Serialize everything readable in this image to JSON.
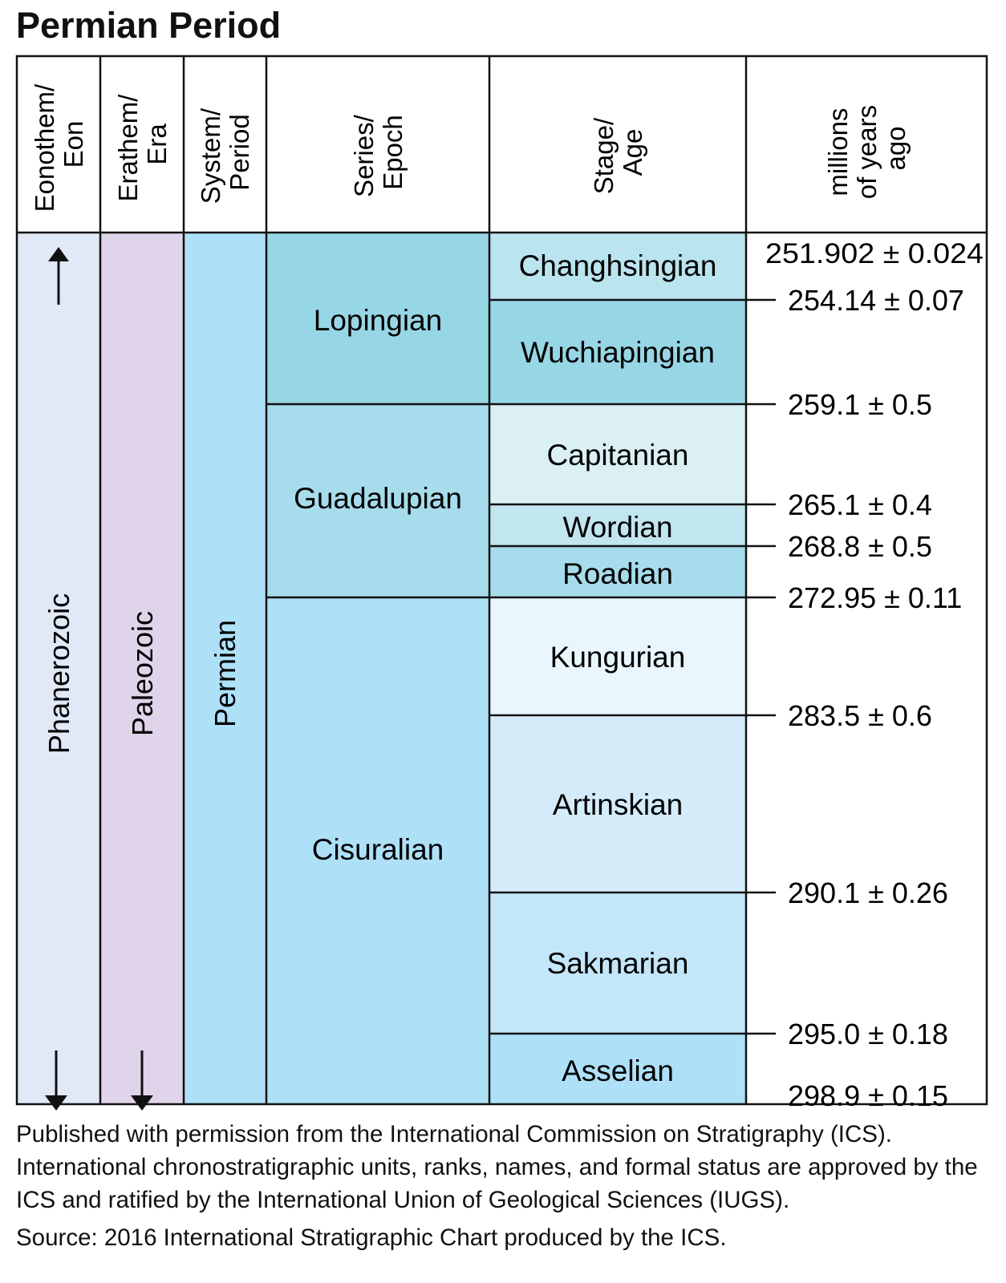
{
  "title": "Permian Period",
  "headers": {
    "eon": [
      "Eonothem/",
      "Eon"
    ],
    "era": [
      "Erathem/",
      "Era"
    ],
    "period": [
      "System/",
      "Period"
    ],
    "epoch": [
      "Series/",
      "Epoch"
    ],
    "age": [
      "Stage/",
      "Age"
    ],
    "mya": [
      "millions",
      "of years",
      "ago"
    ]
  },
  "eon": "Phanerozoic",
  "era": "Paleozoic",
  "period": "Permian",
  "epochs": [
    "Lopingian",
    "Guadalupian",
    "Cisuralian"
  ],
  "stages": [
    "Changhsingian",
    "Wuchiapingian",
    "Capitanian",
    "Wordian",
    "Roadian",
    "Kungurian",
    "Artinskian",
    "Sakmarian",
    "Asselian"
  ],
  "ages": [
    "251.902 ± 0.024",
    "254.14 ± 0.07",
    "259.1 ± 0.5",
    "265.1 ± 0.4",
    "268.8 ± 0.5",
    "272.95 ± 0.11",
    "283.5 ± 0.6",
    "290.1 ± 0.26",
    "295.0 ± 0.18",
    "298.9 ± 0.15"
  ],
  "colors": {
    "eon": "#e1e8f6",
    "era": "#e0d4ea",
    "period": "#aee0f7",
    "lopingian": "#97d6e5",
    "guadalupian": "#a6dceb",
    "cisuralian": "#aee0f7",
    "changhsingian": "#bae4ee",
    "wuchiapingian": "#97d6e5",
    "capitanian": "#dbf0f4",
    "wordian": "#c2e6ef",
    "roadian": "#a6dceb",
    "kungurian": "#e9f6fd",
    "artinskian": "#d4ecfa",
    "sakmarian": "#c4e6f9",
    "asselian": "#aee0f7"
  },
  "footer": {
    "permission": "Published with permission from the International Commission on Stratigraphy (ICS). International chronostratigraphic units, ranks, names, and formal status are approved by the ICS and ratified by the International Union of Geological Sciences (IUGS).",
    "source": "Source: 2016 International Stratigraphic Chart produced by the ICS."
  }
}
